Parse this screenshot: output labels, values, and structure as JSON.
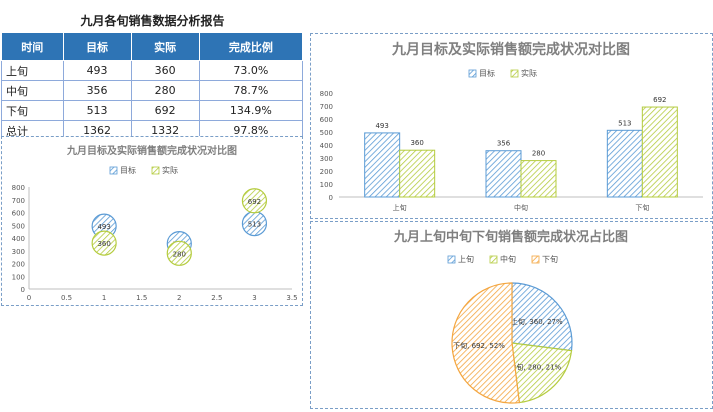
{
  "report_title": "九月各旬销售数据分析报告",
  "table": {
    "headers": [
      "时间",
      "目标",
      "实际",
      "完成比例"
    ],
    "rows": [
      [
        "上旬",
        "493",
        "360",
        "73.0%"
      ],
      [
        "中旬",
        "356",
        "280",
        "78.7%"
      ],
      [
        "下旬",
        "513",
        "692",
        "134.9%"
      ],
      [
        "总计",
        "1362",
        "1332",
        "97.8%"
      ]
    ]
  },
  "colors": {
    "target": "#5b9bd5",
    "actual": "#b5cc3f",
    "third": "#f4a640",
    "header_bg": "#2e74b5"
  },
  "chart_data": [
    {
      "type": "scatter",
      "title": "九月目标及实际销售额完成状况对比图",
      "series": [
        {
          "name": "目标",
          "points": [
            [
              1,
              493
            ],
            [
              2,
              356
            ],
            [
              3,
              513
            ]
          ],
          "labels": [
            "493",
            "356",
            "513"
          ]
        },
        {
          "name": "实际",
          "points": [
            [
              1,
              360
            ],
            [
              2,
              280
            ],
            [
              3,
              692
            ]
          ],
          "labels": [
            "360",
            "280",
            "692"
          ]
        }
      ],
      "xlim": [
        0,
        3.5
      ],
      "ylim": [
        0,
        800
      ],
      "xticks": [
        "0",
        "0.5",
        "1",
        "1.5",
        "2",
        "2.5",
        "3",
        "3.5"
      ],
      "yticks": [
        "0",
        "100",
        "200",
        "300",
        "400",
        "500",
        "600",
        "700",
        "800"
      ],
      "legend": "top"
    },
    {
      "type": "bar",
      "title": "九月目标及实际销售额完成状况对比图",
      "categories": [
        "上旬",
        "中旬",
        "下旬"
      ],
      "series": [
        {
          "name": "目标",
          "values": [
            493,
            356,
            513
          ]
        },
        {
          "name": "实际",
          "values": [
            360,
            280,
            692
          ]
        }
      ],
      "ylim": [
        0,
        800
      ],
      "yticks": [
        "0",
        "100",
        "200",
        "300",
        "400",
        "500",
        "600",
        "700",
        "800"
      ],
      "legend": "top"
    },
    {
      "type": "pie",
      "title": "九月上旬中旬下旬销售额完成状况占比图",
      "categories": [
        "上旬",
        "中旬",
        "下旬"
      ],
      "values": [
        360,
        280,
        692
      ],
      "labels": [
        "上旬, 360, 27%",
        "中旬, 280, 21%",
        "下旬, 692, 52%"
      ],
      "legend": "top"
    }
  ]
}
